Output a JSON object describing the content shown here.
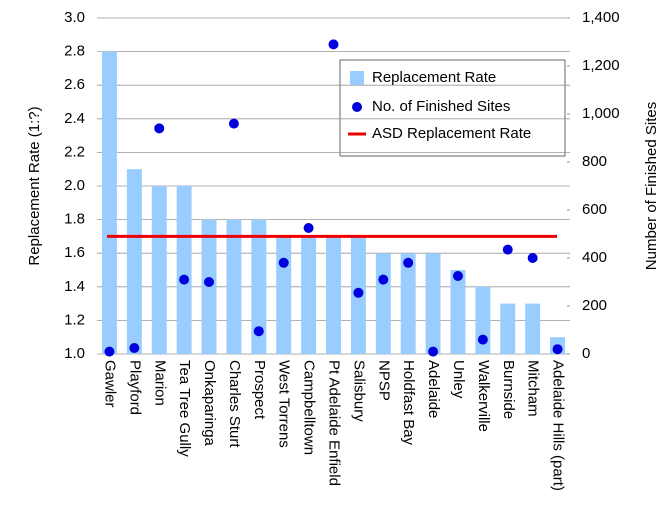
{
  "chart_data": {
    "type": "bar",
    "y_label": "Replacement Rate (1:?)",
    "y2_label": "Number of Finished Sites",
    "categories": [
      "Gawler",
      "Playford",
      "Marion",
      "Tea Tree Gully",
      "Onkaparinga",
      "Charles Sturt",
      "Prospect",
      "West Torrens",
      "Campbelltown",
      "Pt Adelaide Enfield",
      "Salisbury",
      "NPSP",
      "Holdfast Bay",
      "Adelaide",
      "Unley",
      "Walkerville",
      "Burnside",
      "Mitcham",
      "Adelaide Hills (part)"
    ],
    "series": [
      {
        "name": "Replacement Rate",
        "type": "bar",
        "color": "#99ccff",
        "values": [
          2.8,
          2.1,
          2.0,
          2.0,
          1.8,
          1.8,
          1.8,
          1.7,
          1.7,
          1.7,
          1.7,
          1.6,
          1.6,
          1.6,
          1.5,
          1.4,
          1.3,
          1.3,
          1.1
        ]
      },
      {
        "name": "No. of Finished Sites",
        "type": "scatter",
        "axis": "y2",
        "color": "#0000dd",
        "values": [
          10,
          25,
          940,
          310,
          300,
          960,
          95,
          380,
          525,
          1290,
          255,
          310,
          380,
          10,
          325,
          60,
          435,
          400,
          20
        ]
      }
    ],
    "reference_line": {
      "name": "ASD Replacement Rate",
      "value": 1.7,
      "color": "#ee0000"
    },
    "ylim": [
      1.0,
      3.0
    ],
    "yticks": [
      {
        "value": 1.0,
        "label": "1.0"
      },
      1.2,
      1.4,
      1.6,
      1.8,
      {
        "value": 2.0,
        "label": "2.0"
      },
      2.2,
      2.4,
      2.6,
      2.8,
      {
        "value": 3.0,
        "label": "3.0"
      }
    ],
    "y2lim": [
      0,
      1400
    ],
    "y2ticks": [
      0,
      200,
      400,
      600,
      800,
      {
        "value": 1000,
        "label": "1,000"
      },
      {
        "value": 1200,
        "label": "1,200"
      },
      {
        "value": 1400,
        "label": "1,400"
      }
    ],
    "grid": true
  }
}
